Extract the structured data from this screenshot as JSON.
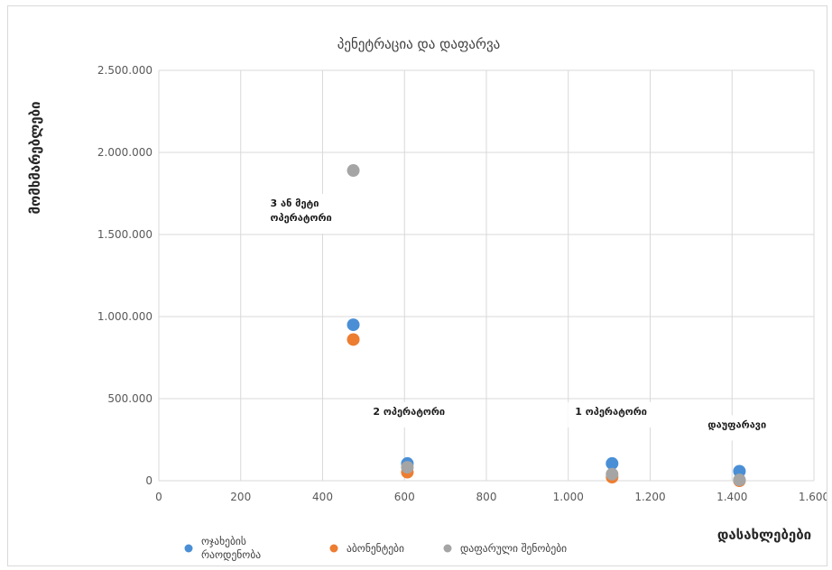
{
  "chart_data": {
    "type": "scatter",
    "title": "პენეტრაცია და დაფარვა",
    "xlabel": "დასახლებები",
    "ylabel": "მომხმარებლები",
    "xlim": [
      0,
      1600
    ],
    "ylim": [
      0,
      2500000
    ],
    "x_ticks": [
      "0",
      "200",
      "400",
      "600",
      "800",
      "1.000",
      "1.200",
      "1.400",
      "1.600"
    ],
    "y_ticks": [
      "0",
      "500.000",
      "1.000.000",
      "1.500.000",
      "2.000.000",
      "2.500.000"
    ],
    "grid": true,
    "legend_position": "bottom",
    "series": [
      {
        "name": "ოჯახების რაოდენობა",
        "color": "#4a8fd6",
        "points": [
          [
            475,
            950000
          ],
          [
            607,
            105000
          ],
          [
            1107,
            105000
          ],
          [
            1418,
            58000
          ]
        ]
      },
      {
        "name": "აბონენტები",
        "color": "#ed7d31",
        "points": [
          [
            475,
            860000
          ],
          [
            607,
            52000
          ],
          [
            1107,
            22000
          ],
          [
            1418,
            0
          ]
        ]
      },
      {
        "name": "დაფარული შენობები",
        "color": "#a5a5a5",
        "points": [
          [
            475,
            1890000
          ],
          [
            607,
            82000
          ],
          [
            1107,
            40000
          ],
          [
            1418,
            5000
          ]
        ]
      }
    ],
    "annotations": [
      {
        "lines": [
          "3 ან მეტი",
          "ოპერატორი"
        ],
        "x": 475,
        "y": 1890000
      },
      {
        "lines": [
          "2 ოპერატორი"
        ],
        "x": 607,
        "y": 105000
      },
      {
        "lines": [
          "1 ოპერატორი"
        ],
        "x": 1107,
        "y": 105000
      },
      {
        "lines": [
          "დაუფარავი"
        ],
        "x": 1418,
        "y": 58000
      }
    ]
  }
}
